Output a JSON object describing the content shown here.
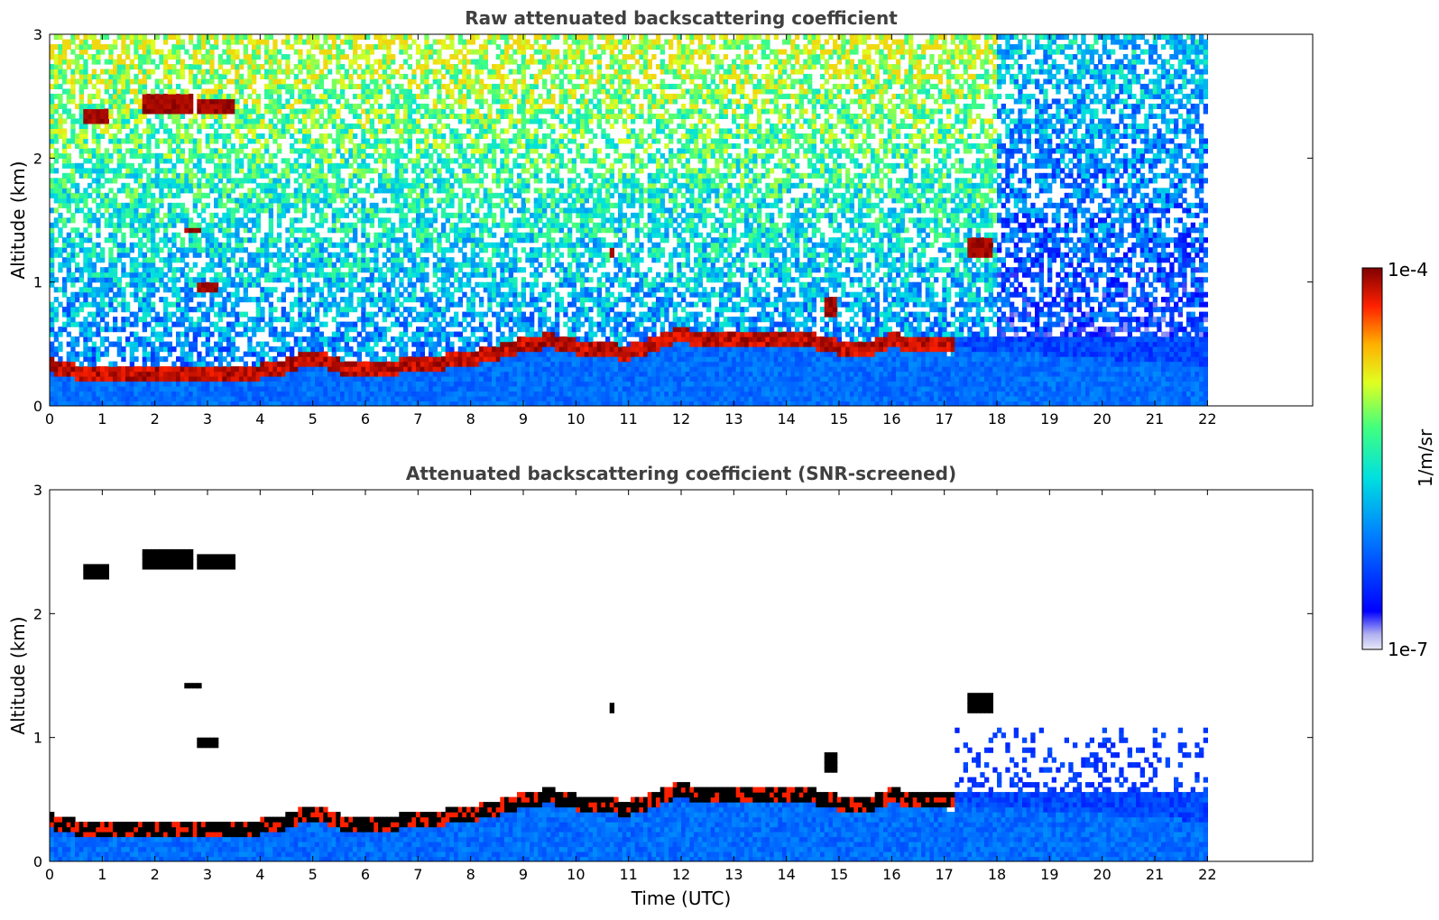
{
  "chart_data": [
    {
      "type": "heatmap",
      "title": "Raw attenuated backscattering coefficient",
      "xlabel": "",
      "ylabel": "Altitude (km)",
      "xlim": [
        0,
        24
      ],
      "ylim": [
        0,
        3
      ],
      "xticks": [
        0,
        1,
        2,
        3,
        4,
        5,
        6,
        7,
        8,
        9,
        10,
        11,
        12,
        13,
        14,
        15,
        16,
        17,
        18,
        19,
        20,
        21,
        22
      ],
      "yticks": [
        0,
        1,
        2,
        3
      ],
      "data_end_time": 22,
      "noise_top_end_time": 18,
      "screened": false,
      "layer_top_km": [
        [
          0,
          0.35
        ],
        [
          0.5,
          0.3
        ],
        [
          1,
          0.3
        ],
        [
          2,
          0.28
        ],
        [
          3,
          0.27
        ],
        [
          3.5,
          0.28
        ],
        [
          4,
          0.3
        ],
        [
          4.5,
          0.34
        ],
        [
          5,
          0.42
        ],
        [
          5.5,
          0.34
        ],
        [
          6,
          0.3
        ],
        [
          6.5,
          0.33
        ],
        [
          7,
          0.36
        ],
        [
          7.5,
          0.38
        ],
        [
          8,
          0.4
        ],
        [
          8.5,
          0.45
        ],
        [
          9,
          0.52
        ],
        [
          9.5,
          0.55
        ],
        [
          10,
          0.5
        ],
        [
          10.5,
          0.48
        ],
        [
          11,
          0.45
        ],
        [
          11.5,
          0.52
        ],
        [
          12,
          0.6
        ],
        [
          12.5,
          0.55
        ],
        [
          13,
          0.55
        ],
        [
          13.5,
          0.56
        ],
        [
          14,
          0.55
        ],
        [
          14.5,
          0.55
        ],
        [
          15,
          0.5
        ],
        [
          15.5,
          0.48
        ],
        [
          16,
          0.55
        ],
        [
          16.5,
          0.52
        ],
        [
          17,
          0.5
        ],
        [
          17.2,
          0.5
        ]
      ],
      "clouds": [
        {
          "t0": 0.65,
          "t1": 1.15,
          "alt": 2.35,
          "thick": 0.12
        },
        {
          "t0": 1.8,
          "t1": 2.75,
          "alt": 2.45,
          "thick": 0.14
        },
        {
          "t0": 2.8,
          "t1": 3.5,
          "alt": 2.42,
          "thick": 0.12
        },
        {
          "t0": 2.55,
          "t1": 2.9,
          "alt": 1.42,
          "thick": 0.07
        },
        {
          "t0": 2.8,
          "t1": 3.2,
          "alt": 0.95,
          "thick": 0.08
        },
        {
          "t0": 14.75,
          "t1": 15.0,
          "alt": 0.8,
          "thick": 0.18
        },
        {
          "t0": 17.4,
          "t1": 17.95,
          "alt": 1.3,
          "thick": 0.16
        },
        {
          "t0": 10.65,
          "t1": 10.75,
          "alt": 1.25,
          "thick": 0.1
        }
      ]
    },
    {
      "type": "heatmap",
      "title": "Attenuated backscattering coefficient (SNR-screened)",
      "xlabel": "Time (UTC)",
      "ylabel": "Altitude (km)",
      "xlim": [
        0,
        24
      ],
      "ylim": [
        0,
        3
      ],
      "xticks": [
        0,
        1,
        2,
        3,
        4,
        5,
        6,
        7,
        8,
        9,
        10,
        11,
        12,
        13,
        14,
        15,
        16,
        17,
        18,
        19,
        20,
        21,
        22
      ],
      "yticks": [
        0,
        1,
        2,
        3
      ],
      "data_end_time": 22,
      "screened": true
    }
  ],
  "colorbar": {
    "label": "1/m/sr",
    "min_label": "1e-7",
    "max_label": "1e-4",
    "colormap": "jet"
  }
}
